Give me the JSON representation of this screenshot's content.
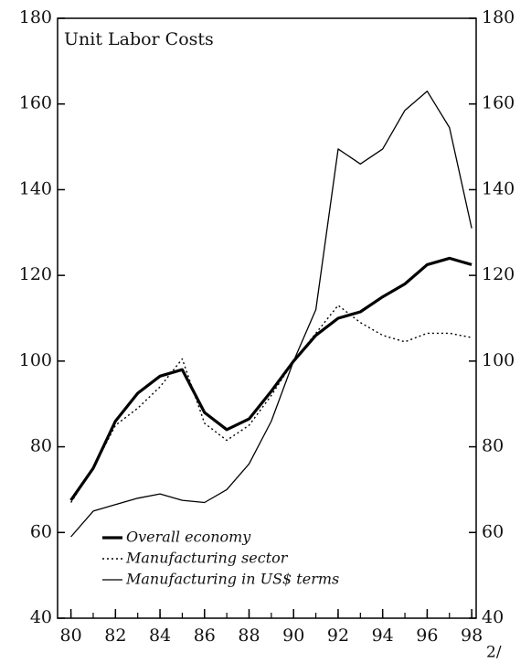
{
  "chart_data": {
    "type": "line",
    "title": "Unit Labor Costs",
    "annotation": "2/",
    "x": [
      80,
      81,
      82,
      83,
      84,
      85,
      86,
      87,
      88,
      89,
      90,
      91,
      92,
      93,
      94,
      95,
      96,
      97,
      98
    ],
    "xlim": [
      79.4,
      98.2
    ],
    "xticks": [
      80,
      82,
      84,
      86,
      88,
      90,
      92,
      94,
      96,
      98
    ],
    "ylim": [
      40,
      180
    ],
    "yticks": [
      40,
      60,
      80,
      100,
      120,
      140,
      160,
      180
    ],
    "series": [
      {
        "name": "Overall economy",
        "color": "#000000",
        "style": "thick",
        "values": [
          67.5,
          75,
          86,
          92.5,
          96.5,
          98,
          88,
          84,
          86.5,
          93,
          100,
          106,
          110,
          111.5,
          115,
          118,
          122.5,
          124,
          122.5
        ]
      },
      {
        "name": "Manufacturing sector",
        "color": "#000000",
        "style": "dotted",
        "values": [
          67,
          75,
          85,
          89,
          94,
          100.5,
          85.5,
          81.5,
          85,
          92,
          100,
          106.5,
          113,
          109,
          106,
          104.5,
          106.5,
          106.5,
          105.5
        ]
      },
      {
        "name": "Manufacturing in US$ terms",
        "color": "#000000",
        "style": "thin",
        "values": [
          59,
          65,
          66.5,
          68,
          69,
          67.5,
          67,
          70,
          76,
          86,
          100,
          112,
          149.5,
          146,
          149.5,
          158.5,
          163,
          154.5,
          131
        ]
      }
    ]
  }
}
